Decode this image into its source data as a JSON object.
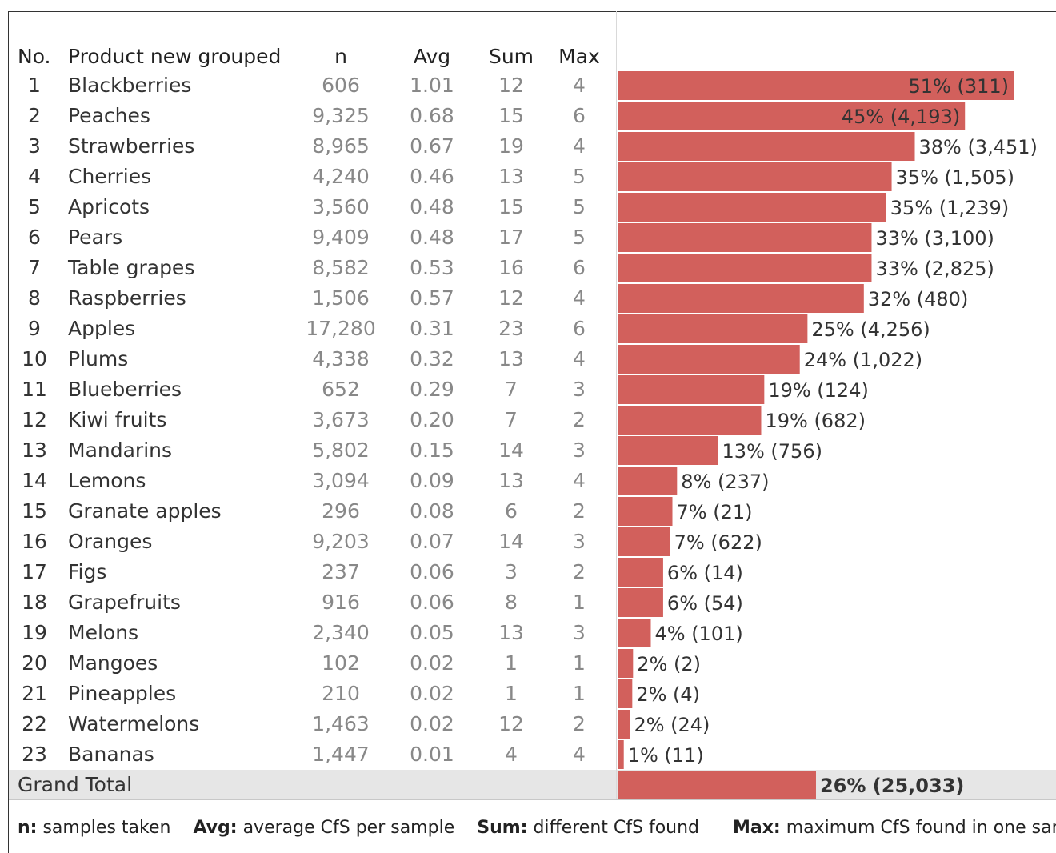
{
  "table": {
    "headers": {
      "no": "No.",
      "product": "Product new grouped",
      "n": "n",
      "avg": "Avg",
      "sum": "Sum",
      "max": "Max"
    },
    "rows": [
      {
        "no": "1",
        "product": "Blackberries",
        "n": "606",
        "avg": "1.01",
        "sum": "12",
        "max": "4",
        "label": "51% (311)"
      },
      {
        "no": "2",
        "product": "Peaches",
        "n": "9,325",
        "avg": "0.68",
        "sum": "15",
        "max": "6",
        "label": "45% (4,193)"
      },
      {
        "no": "3",
        "product": "Strawberries",
        "n": "8,965",
        "avg": "0.67",
        "sum": "19",
        "max": "4",
        "label": "38% (3,451)"
      },
      {
        "no": "4",
        "product": "Cherries",
        "n": "4,240",
        "avg": "0.46",
        "sum": "13",
        "max": "5",
        "label": "35% (1,505)"
      },
      {
        "no": "5",
        "product": "Apricots",
        "n": "3,560",
        "avg": "0.48",
        "sum": "15",
        "max": "5",
        "label": "35% (1,239)"
      },
      {
        "no": "6",
        "product": "Pears",
        "n": "9,409",
        "avg": "0.48",
        "sum": "17",
        "max": "5",
        "label": "33% (3,100)"
      },
      {
        "no": "7",
        "product": "Table grapes",
        "n": "8,582",
        "avg": "0.53",
        "sum": "16",
        "max": "6",
        "label": "33% (2,825)"
      },
      {
        "no": "8",
        "product": "Raspberries",
        "n": "1,506",
        "avg": "0.57",
        "sum": "12",
        "max": "4",
        "label": "32% (480)"
      },
      {
        "no": "9",
        "product": "Apples",
        "n": "17,280",
        "avg": "0.31",
        "sum": "23",
        "max": "6",
        "label": "25% (4,256)"
      },
      {
        "no": "10",
        "product": "Plums",
        "n": "4,338",
        "avg": "0.32",
        "sum": "13",
        "max": "4",
        "label": "24% (1,022)"
      },
      {
        "no": "11",
        "product": "Blueberries",
        "n": "652",
        "avg": "0.29",
        "sum": "7",
        "max": "3",
        "label": "19% (124)"
      },
      {
        "no": "12",
        "product": "Kiwi fruits",
        "n": "3,673",
        "avg": "0.20",
        "sum": "7",
        "max": "2",
        "label": "19% (682)"
      },
      {
        "no": "13",
        "product": "Mandarins",
        "n": "5,802",
        "avg": "0.15",
        "sum": "14",
        "max": "3",
        "label": "13% (756)"
      },
      {
        "no": "14",
        "product": "Lemons",
        "n": "3,094",
        "avg": "0.09",
        "sum": "13",
        "max": "4",
        "label": "8% (237)"
      },
      {
        "no": "15",
        "product": "Granate apples",
        "n": "296",
        "avg": "0.08",
        "sum": "6",
        "max": "2",
        "label": "7% (21)"
      },
      {
        "no": "16",
        "product": "Oranges",
        "n": "9,203",
        "avg": "0.07",
        "sum": "14",
        "max": "3",
        "label": "7% (622)"
      },
      {
        "no": "17",
        "product": "Figs",
        "n": "237",
        "avg": "0.06",
        "sum": "3",
        "max": "2",
        "label": "6% (14)"
      },
      {
        "no": "18",
        "product": "Grapefruits",
        "n": "916",
        "avg": "0.06",
        "sum": "8",
        "max": "1",
        "label": "6% (54)"
      },
      {
        "no": "19",
        "product": "Melons",
        "n": "2,340",
        "avg": "0.05",
        "sum": "13",
        "max": "3",
        "label": "4% (101)"
      },
      {
        "no": "20",
        "product": "Mangoes",
        "n": "102",
        "avg": "0.02",
        "sum": "1",
        "max": "1",
        "label": "2% (2)"
      },
      {
        "no": "21",
        "product": "Pineapples",
        "n": "210",
        "avg": "0.02",
        "sum": "1",
        "max": "1",
        "label": "2% (4)"
      },
      {
        "no": "22",
        "product": "Watermelons",
        "n": "1,463",
        "avg": "0.02",
        "sum": "12",
        "max": "2",
        "label": "2% (24)"
      },
      {
        "no": "23",
        "product": "Bananas",
        "n": "1,447",
        "avg": "0.01",
        "sum": "4",
        "max": "4",
        "label": "1% (11)"
      }
    ],
    "grand_total": {
      "label": "Grand Total",
      "bar_label": "26% (25,033)"
    }
  },
  "legend": {
    "n_key": "n:",
    "n_text": "samples taken",
    "avg_key": "Avg:",
    "avg_text": "average CfS per sample",
    "sum_key": "Sum:",
    "sum_text": "different CfS found",
    "max_key": "Max:",
    "max_text": "maximum CfS found in one sample"
  },
  "colors": {
    "bar": "#d2605c",
    "total_band": "#e6e6e6"
  },
  "chart_data": {
    "type": "bar",
    "orientation": "horizontal",
    "categories": [
      "Blackberries",
      "Peaches",
      "Strawberries",
      "Cherries",
      "Apricots",
      "Pears",
      "Table grapes",
      "Raspberries",
      "Apples",
      "Plums",
      "Blueberries",
      "Kiwi fruits",
      "Mandarins",
      "Lemons",
      "Granate apples",
      "Oranges",
      "Figs",
      "Grapefruits",
      "Melons",
      "Mangoes",
      "Pineapples",
      "Watermelons",
      "Bananas"
    ],
    "values": [
      51.3,
      45.0,
      38.5,
      35.5,
      34.8,
      32.9,
      32.9,
      31.9,
      24.6,
      23.6,
      19.0,
      18.6,
      13.0,
      7.7,
      7.1,
      6.8,
      5.9,
      5.9,
      4.3,
      2.0,
      1.9,
      1.6,
      0.8
    ],
    "data_labels": [
      "51% (311)",
      "45% (4,193)",
      "38% (3,451)",
      "35% (1,505)",
      "35% (1,239)",
      "33% (3,100)",
      "33% (2,825)",
      "32% (480)",
      "25% (4,256)",
      "24% (1,022)",
      "19% (124)",
      "19% (682)",
      "13% (756)",
      "8% (237)",
      "7% (21)",
      "7% (622)",
      "6% (14)",
      "6% (54)",
      "4% (101)",
      "2% (2)",
      "2% (4)",
      "2% (24)",
      "1% (11)"
    ],
    "grand_total": {
      "value": 25.7,
      "label": "26% (25,033)"
    },
    "xlim": [
      0,
      51.3
    ],
    "grid": false,
    "legend": "none"
  }
}
